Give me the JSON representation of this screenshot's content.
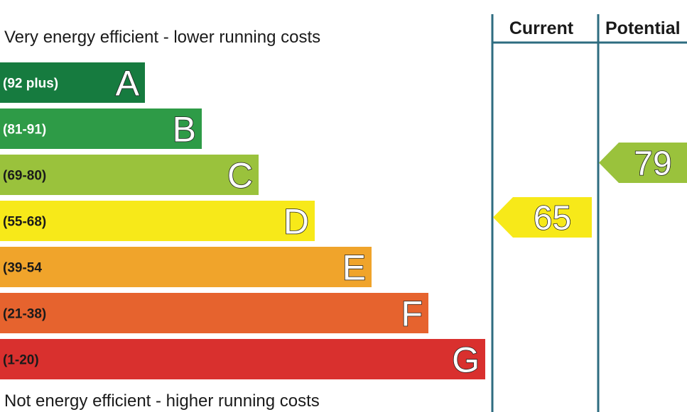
{
  "chart_data": {
    "type": "bar",
    "top_caption": "Very energy efficient - lower running costs",
    "bottom_caption": "Not energy efficient - higher running costs",
    "bands": [
      {
        "letter": "A",
        "range": "(92 plus)",
        "color": "#167b3f",
        "text_dark": false
      },
      {
        "letter": "B",
        "range": "(81-91)",
        "color": "#2e9b47",
        "text_dark": false
      },
      {
        "letter": "C",
        "range": "(69-80)",
        "color": "#9ac23c",
        "text_dark": true
      },
      {
        "letter": "D",
        "range": "(55-68)",
        "color": "#f7e919",
        "text_dark": true
      },
      {
        "letter": "E",
        "range": "(39-54",
        "color": "#f0a42b",
        "text_dark": true
      },
      {
        "letter": "F",
        "range": "(21-38)",
        "color": "#e6632e",
        "text_dark": true
      },
      {
        "letter": "G",
        "range": "(1-20)",
        "color": "#d9302e",
        "text_dark": true
      }
    ],
    "columns": [
      {
        "header": "Current",
        "value": 65,
        "color": "#f7e919"
      },
      {
        "header": "Potential",
        "value": 79,
        "color": "#9ac23c"
      }
    ],
    "divider_color": "#2e6c80"
  }
}
